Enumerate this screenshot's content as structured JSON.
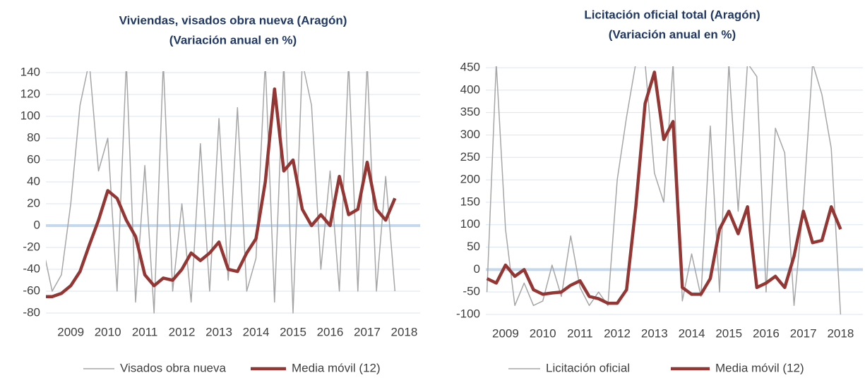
{
  "chart_data": [
    {
      "type": "line",
      "title": "Viviendas, visados obra nueva  (Aragón)",
      "subtitle": "(Variación anual en %)",
      "x": [
        2008.75,
        2009.0,
        2009.25,
        2009.5,
        2009.75,
        2010.0,
        2010.25,
        2010.5,
        2010.75,
        2011.0,
        2011.25,
        2011.5,
        2011.75,
        2012.0,
        2012.25,
        2012.5,
        2012.75,
        2013.0,
        2013.25,
        2013.5,
        2013.75,
        2014.0,
        2014.25,
        2014.5,
        2014.75,
        2015.0,
        2015.25,
        2015.5,
        2015.75,
        2016.0,
        2016.25,
        2016.5,
        2016.75,
        2017.0,
        2017.25,
        2017.5,
        2017.75,
        2018.0,
        2018.25
      ],
      "series": [
        {
          "name": "Visados obra nueva",
          "color": "#a6a6a6",
          "values": [
            -20,
            -60,
            -45,
            20,
            110,
            150,
            50,
            80,
            -60,
            150,
            -70,
            55,
            -80,
            150,
            -60,
            20,
            -70,
            75,
            -60,
            98,
            -50,
            108,
            -60,
            -30,
            150,
            -70,
            150,
            -80,
            150,
            110,
            -40,
            50,
            -60,
            150,
            -60,
            150,
            -60,
            45,
            -60
          ]
        },
        {
          "name": "Media móvil (12)",
          "color": "#943634",
          "values": [
            -65,
            -65,
            -62,
            -55,
            -42,
            -18,
            5,
            32,
            25,
            5,
            -10,
            -45,
            -55,
            -48,
            -50,
            -40,
            -25,
            -32,
            -25,
            -15,
            -40,
            -42,
            -25,
            -12,
            40,
            125,
            50,
            60,
            15,
            0,
            10,
            0,
            45,
            10,
            15,
            58,
            15,
            5,
            25
          ]
        }
      ],
      "xlim": [
        2008.83,
        2018.93
      ],
      "xticks": [
        {
          "value": 2009.5,
          "label": "2009"
        },
        {
          "value": 2010.5,
          "label": "2010"
        },
        {
          "value": 2011.5,
          "label": "2011"
        },
        {
          "value": 2012.5,
          "label": "2012"
        },
        {
          "value": 2013.5,
          "label": "2013"
        },
        {
          "value": 2014.5,
          "label": "2014"
        },
        {
          "value": 2015.5,
          "label": "2015"
        },
        {
          "value": 2016.5,
          "label": "2016"
        },
        {
          "value": 2017.5,
          "label": "2017"
        },
        {
          "value": 2018.5,
          "label": "2018"
        }
      ],
      "ylim": [
        -80,
        140
      ],
      "yticks": [
        -80,
        -60,
        -40,
        -20,
        0,
        20,
        40,
        60,
        80,
        100,
        120,
        140
      ],
      "grid": true,
      "legend": "bottom"
    },
    {
      "type": "line",
      "title": "Licitación oficial total  (Aragón)",
      "subtitle": "(Variación anual en %)",
      "x": [
        2009.0,
        2009.25,
        2009.5,
        2009.75,
        2010.0,
        2010.25,
        2010.5,
        2010.75,
        2011.0,
        2011.25,
        2011.5,
        2011.75,
        2012.0,
        2012.25,
        2012.5,
        2012.75,
        2013.0,
        2013.25,
        2013.5,
        2013.75,
        2014.0,
        2014.25,
        2014.5,
        2014.75,
        2015.0,
        2015.25,
        2015.5,
        2015.75,
        2016.0,
        2016.25,
        2016.5,
        2016.75,
        2017.0,
        2017.25,
        2017.5,
        2017.75,
        2018.0,
        2018.25,
        2018.5
      ],
      "series": [
        {
          "name": "Licitación oficial",
          "color": "#a6a6a6",
          "values": [
            -50,
            460,
            90,
            -80,
            -30,
            -80,
            -70,
            10,
            -60,
            75,
            -40,
            -80,
            -50,
            -80,
            200,
            340,
            460,
            460,
            215,
            150,
            460,
            -70,
            35,
            -60,
            320,
            -50,
            460,
            130,
            460,
            430,
            -50,
            315,
            260,
            -80,
            145,
            460,
            390,
            270,
            -100
          ]
        },
        {
          "name": "Media móvil (12)",
          "color": "#943634",
          "values": [
            -20,
            -30,
            10,
            -15,
            0,
            -45,
            -55,
            -52,
            -50,
            -35,
            -25,
            -60,
            -65,
            -75,
            -75,
            -45,
            140,
            370,
            440,
            290,
            330,
            -40,
            -55,
            -55,
            -20,
            90,
            130,
            80,
            140,
            -40,
            -30,
            -15,
            -40,
            30,
            130,
            60,
            65,
            140,
            90
          ]
        }
      ],
      "xlim": [
        2008.97,
        2019.1
      ],
      "xticks": [
        {
          "value": 2009.5,
          "label": "2009"
        },
        {
          "value": 2010.5,
          "label": "2010"
        },
        {
          "value": 2011.5,
          "label": "2011"
        },
        {
          "value": 2012.5,
          "label": "2012"
        },
        {
          "value": 2013.5,
          "label": "2013"
        },
        {
          "value": 2014.5,
          "label": "2014"
        },
        {
          "value": 2015.5,
          "label": "2015"
        },
        {
          "value": 2016.5,
          "label": "2016"
        },
        {
          "value": 2017.5,
          "label": "2017"
        },
        {
          "value": 2018.5,
          "label": "2018"
        }
      ],
      "ylim": [
        -100,
        450
      ],
      "yticks": [
        -100,
        -50,
        0,
        50,
        100,
        150,
        200,
        250,
        300,
        350,
        400,
        450
      ],
      "grid": true,
      "legend": "bottom"
    }
  ]
}
